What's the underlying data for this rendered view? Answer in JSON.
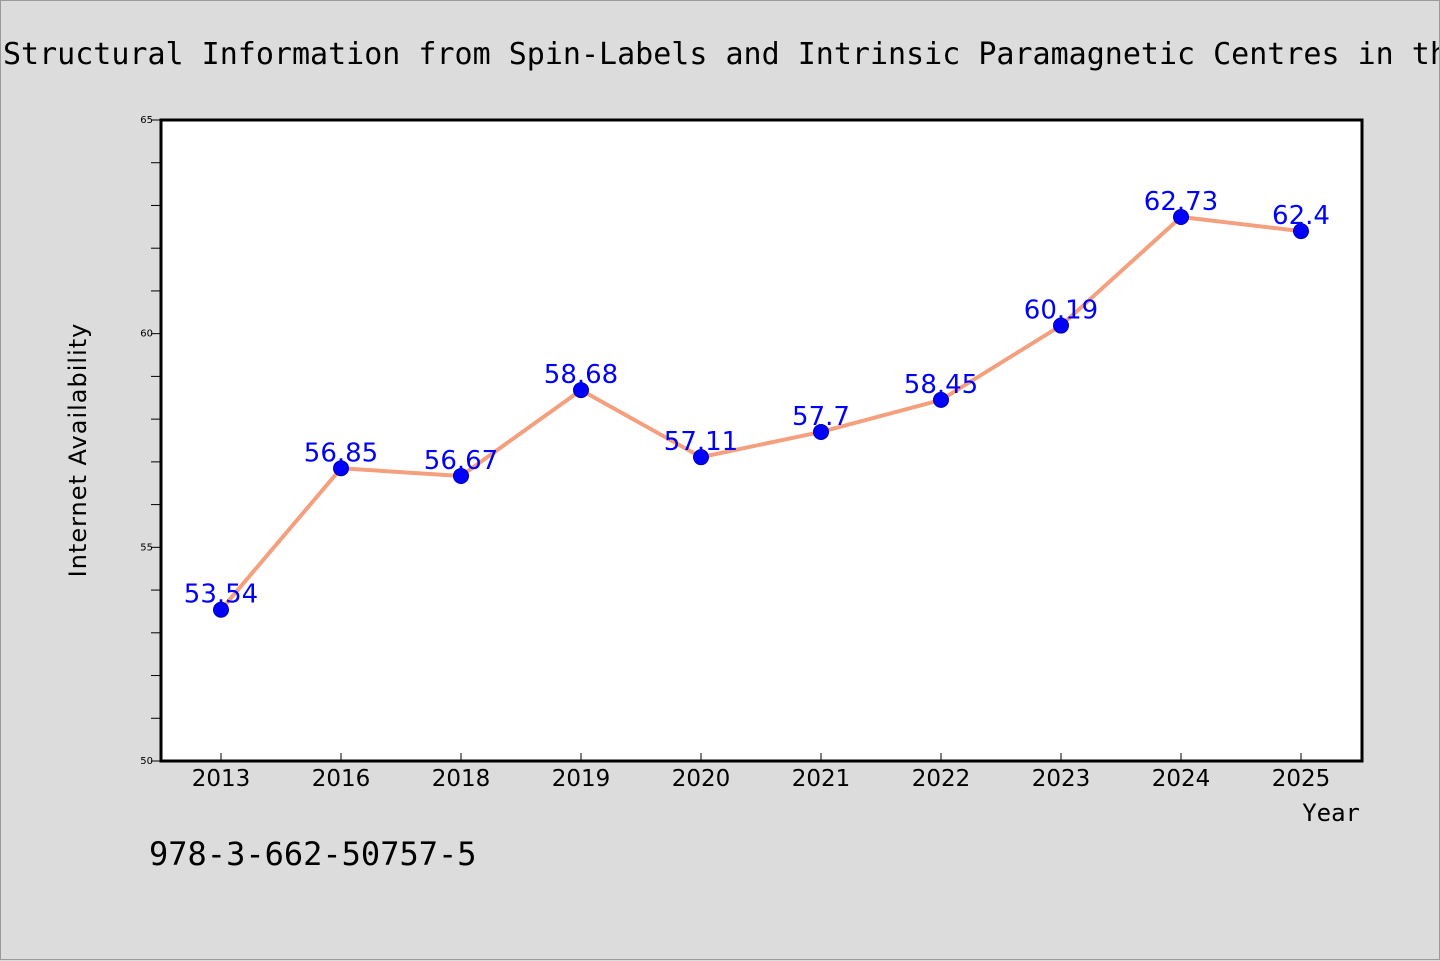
{
  "chart_data": {
    "type": "line",
    "title": "Structural Information from Spin-Labels and Intrinsic Paramagnetic Centres in the Biosciences",
    "xlabel": "Year",
    "ylabel": "Internet Availability",
    "categories": [
      "2013",
      "2016",
      "2018",
      "2019",
      "2020",
      "2021",
      "2022",
      "2023",
      "2024",
      "2025"
    ],
    "series": [
      {
        "values": [
          53.54,
          56.85,
          56.67,
          58.68,
          57.11,
          57.7,
          58.45,
          60.19,
          62.73,
          62.4
        ],
        "labels": [
          "53.54",
          "56.85",
          "56.67",
          "58.68",
          "57.11",
          "57.7",
          "58.45",
          "60.19",
          "62.73",
          "62.4"
        ]
      }
    ],
    "ylim": [
      50,
      65
    ],
    "yticks": [
      "50",
      "55",
      "60",
      "65"
    ],
    "grid": false,
    "legend": "none",
    "colors": {
      "line": "#f4a07e",
      "marker": "#0000ff",
      "label": "#0000ff",
      "plot_background": "#ffffff",
      "page_background": "#dcdcdc"
    }
  },
  "footer": {
    "isbn": "978-3-662-50757-5"
  }
}
